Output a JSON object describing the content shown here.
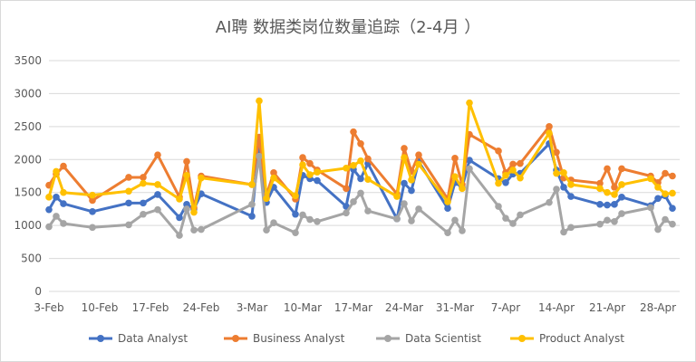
{
  "chart_data": {
    "type": "line",
    "title": "AI聘 数据类岗位数量追踪（2-4月 ）",
    "xlabel": "",
    "ylabel": "",
    "ylim": [
      0,
      3500
    ],
    "yticks": [
      0,
      500,
      1000,
      1500,
      2000,
      2500,
      3000,
      3500
    ],
    "x_start": "2019-02-03",
    "x_end": "2019-05-01",
    "xticks": [
      {
        "date": "2019-02-03",
        "label": "3-Feb"
      },
      {
        "date": "2019-02-10",
        "label": "10-Feb"
      },
      {
        "date": "2019-02-17",
        "label": "17-Feb"
      },
      {
        "date": "2019-02-24",
        "label": "24-Feb"
      },
      {
        "date": "2019-03-03",
        "label": "3-Mar"
      },
      {
        "date": "2019-03-10",
        "label": "10-Mar"
      },
      {
        "date": "2019-03-17",
        "label": "17-Mar"
      },
      {
        "date": "2019-03-24",
        "label": "24-Mar"
      },
      {
        "date": "2019-03-31",
        "label": "31-Mar"
      },
      {
        "date": "2019-04-07",
        "label": "7-Apr"
      },
      {
        "date": "2019-04-14",
        "label": "14-Apr"
      },
      {
        "date": "2019-04-21",
        "label": "21-Apr"
      },
      {
        "date": "2019-04-28",
        "label": "28-Apr"
      }
    ],
    "grid": "horizontal",
    "legend_position": "bottom",
    "series": [
      {
        "name": "Data Analyst",
        "color": "#4472C4",
        "points": [
          [
            "2019-02-03",
            1240
          ],
          [
            "2019-02-04",
            1430
          ],
          [
            "2019-02-05",
            1330
          ],
          [
            "2019-02-09",
            1210
          ],
          [
            "2019-02-14",
            1340
          ],
          [
            "2019-02-16",
            1340
          ],
          [
            "2019-02-18",
            1470
          ],
          [
            "2019-02-21",
            1120
          ],
          [
            "2019-02-22",
            1320
          ],
          [
            "2019-02-23",
            1250
          ],
          [
            "2019-02-24",
            1480
          ],
          [
            "2019-03-03",
            1140
          ],
          [
            "2019-03-04",
            2260
          ],
          [
            "2019-03-05",
            1350
          ],
          [
            "2019-03-06",
            1580
          ],
          [
            "2019-03-09",
            1170
          ],
          [
            "2019-03-10",
            1760
          ],
          [
            "2019-03-11",
            1710
          ],
          [
            "2019-03-12",
            1680
          ],
          [
            "2019-03-16",
            1290
          ],
          [
            "2019-03-17",
            1850
          ],
          [
            "2019-03-18",
            1710
          ],
          [
            "2019-03-19",
            1940
          ],
          [
            "2019-03-23",
            1100
          ],
          [
            "2019-03-24",
            1640
          ],
          [
            "2019-03-25",
            1530
          ],
          [
            "2019-03-26",
            1970
          ],
          [
            "2019-03-30",
            1260
          ],
          [
            "2019-03-31",
            1650
          ],
          [
            "2019-04-01",
            1580
          ],
          [
            "2019-04-02",
            1990
          ],
          [
            "2019-04-06",
            1710
          ],
          [
            "2019-04-07",
            1650
          ],
          [
            "2019-04-08",
            1780
          ],
          [
            "2019-04-09",
            1790
          ],
          [
            "2019-04-13",
            2240
          ],
          [
            "2019-04-14",
            1840
          ],
          [
            "2019-04-15",
            1580
          ],
          [
            "2019-04-16",
            1440
          ],
          [
            "2019-04-20",
            1320
          ],
          [
            "2019-04-21",
            1310
          ],
          [
            "2019-04-22",
            1320
          ],
          [
            "2019-04-23",
            1430
          ],
          [
            "2019-04-27",
            1300
          ],
          [
            "2019-04-28",
            1410
          ],
          [
            "2019-04-29",
            1450
          ],
          [
            "2019-04-30",
            1260
          ]
        ]
      },
      {
        "name": "Business Analyst",
        "color": "#ED7D31",
        "points": [
          [
            "2019-02-03",
            1610
          ],
          [
            "2019-02-04",
            1780
          ],
          [
            "2019-02-05",
            1900
          ],
          [
            "2019-02-09",
            1380
          ],
          [
            "2019-02-14",
            1730
          ],
          [
            "2019-02-16",
            1730
          ],
          [
            "2019-02-18",
            2070
          ],
          [
            "2019-02-21",
            1430
          ],
          [
            "2019-02-22",
            1970
          ],
          [
            "2019-02-23",
            1270
          ],
          [
            "2019-02-24",
            1750
          ],
          [
            "2019-03-03",
            1620
          ],
          [
            "2019-03-04",
            2340
          ],
          [
            "2019-03-05",
            1460
          ],
          [
            "2019-03-06",
            1800
          ],
          [
            "2019-03-09",
            1400
          ],
          [
            "2019-03-10",
            2030
          ],
          [
            "2019-03-11",
            1940
          ],
          [
            "2019-03-12",
            1840
          ],
          [
            "2019-03-16",
            1560
          ],
          [
            "2019-03-17",
            2420
          ],
          [
            "2019-03-18",
            2240
          ],
          [
            "2019-03-19",
            2010
          ],
          [
            "2019-03-23",
            1480
          ],
          [
            "2019-03-24",
            2170
          ],
          [
            "2019-03-25",
            1820
          ],
          [
            "2019-03-26",
            2070
          ],
          [
            "2019-03-30",
            1400
          ],
          [
            "2019-03-31",
            2020
          ],
          [
            "2019-04-01",
            1620
          ],
          [
            "2019-04-02",
            2380
          ],
          [
            "2019-04-06",
            2130
          ],
          [
            "2019-04-07",
            1800
          ],
          [
            "2019-04-08",
            1930
          ],
          [
            "2019-04-09",
            1940
          ],
          [
            "2019-04-13",
            2500
          ],
          [
            "2019-04-14",
            2110
          ],
          [
            "2019-04-15",
            1720
          ],
          [
            "2019-04-16",
            1690
          ],
          [
            "2019-04-20",
            1640
          ],
          [
            "2019-04-21",
            1860
          ],
          [
            "2019-04-22",
            1580
          ],
          [
            "2019-04-23",
            1860
          ],
          [
            "2019-04-27",
            1750
          ],
          [
            "2019-04-28",
            1650
          ],
          [
            "2019-04-29",
            1790
          ],
          [
            "2019-04-30",
            1750
          ]
        ]
      },
      {
        "name": "Data Scientist",
        "color": "#A5A5A5",
        "points": [
          [
            "2019-02-03",
            980
          ],
          [
            "2019-02-04",
            1140
          ],
          [
            "2019-02-05",
            1030
          ],
          [
            "2019-02-09",
            970
          ],
          [
            "2019-02-14",
            1010
          ],
          [
            "2019-02-16",
            1170
          ],
          [
            "2019-02-18",
            1240
          ],
          [
            "2019-02-21",
            850
          ],
          [
            "2019-02-22",
            1250
          ],
          [
            "2019-02-23",
            930
          ],
          [
            "2019-02-24",
            940
          ],
          [
            "2019-03-03",
            1320
          ],
          [
            "2019-03-04",
            2050
          ],
          [
            "2019-03-05",
            930
          ],
          [
            "2019-03-06",
            1040
          ],
          [
            "2019-03-09",
            890
          ],
          [
            "2019-03-10",
            1160
          ],
          [
            "2019-03-11",
            1090
          ],
          [
            "2019-03-12",
            1060
          ],
          [
            "2019-03-16",
            1190
          ],
          [
            "2019-03-17",
            1360
          ],
          [
            "2019-03-18",
            1490
          ],
          [
            "2019-03-19",
            1220
          ],
          [
            "2019-03-23",
            1100
          ],
          [
            "2019-03-24",
            1330
          ],
          [
            "2019-03-25",
            1070
          ],
          [
            "2019-03-26",
            1250
          ],
          [
            "2019-03-30",
            890
          ],
          [
            "2019-03-31",
            1080
          ],
          [
            "2019-04-01",
            920
          ],
          [
            "2019-04-02",
            1860
          ],
          [
            "2019-04-06",
            1290
          ],
          [
            "2019-04-07",
            1110
          ],
          [
            "2019-04-08",
            1030
          ],
          [
            "2019-04-09",
            1160
          ],
          [
            "2019-04-13",
            1350
          ],
          [
            "2019-04-14",
            1550
          ],
          [
            "2019-04-15",
            900
          ],
          [
            "2019-04-16",
            970
          ],
          [
            "2019-04-20",
            1020
          ],
          [
            "2019-04-21",
            1080
          ],
          [
            "2019-04-22",
            1060
          ],
          [
            "2019-04-23",
            1180
          ],
          [
            "2019-04-27",
            1270
          ],
          [
            "2019-04-28",
            940
          ],
          [
            "2019-04-29",
            1090
          ],
          [
            "2019-04-30",
            1020
          ]
        ]
      },
      {
        "name": "Product Analyst",
        "color": "#FFC000",
        "points": [
          [
            "2019-02-03",
            1430
          ],
          [
            "2019-02-04",
            1820
          ],
          [
            "2019-02-05",
            1500
          ],
          [
            "2019-02-09",
            1460
          ],
          [
            "2019-02-14",
            1520
          ],
          [
            "2019-02-16",
            1640
          ],
          [
            "2019-02-18",
            1620
          ],
          [
            "2019-02-21",
            1400
          ],
          [
            "2019-02-22",
            1760
          ],
          [
            "2019-02-23",
            1200
          ],
          [
            "2019-02-24",
            1720
          ],
          [
            "2019-03-03",
            1620
          ],
          [
            "2019-03-04",
            2890
          ],
          [
            "2019-03-05",
            1410
          ],
          [
            "2019-03-06",
            1720
          ],
          [
            "2019-03-09",
            1450
          ],
          [
            "2019-03-10",
            1920
          ],
          [
            "2019-03-11",
            1770
          ],
          [
            "2019-03-12",
            1810
          ],
          [
            "2019-03-16",
            1870
          ],
          [
            "2019-03-17",
            1910
          ],
          [
            "2019-03-18",
            1980
          ],
          [
            "2019-03-19",
            1700
          ],
          [
            "2019-03-23",
            1440
          ],
          [
            "2019-03-24",
            2030
          ],
          [
            "2019-03-25",
            1690
          ],
          [
            "2019-03-26",
            1930
          ],
          [
            "2019-03-30",
            1360
          ],
          [
            "2019-03-31",
            1740
          ],
          [
            "2019-04-01",
            1560
          ],
          [
            "2019-04-02",
            2860
          ],
          [
            "2019-04-06",
            1640
          ],
          [
            "2019-04-07",
            1760
          ],
          [
            "2019-04-08",
            1840
          ],
          [
            "2019-04-09",
            1720
          ],
          [
            "2019-04-13",
            2400
          ],
          [
            "2019-04-14",
            1790
          ],
          [
            "2019-04-15",
            1800
          ],
          [
            "2019-04-16",
            1620
          ],
          [
            "2019-04-20",
            1560
          ],
          [
            "2019-04-21",
            1500
          ],
          [
            "2019-04-22",
            1470
          ],
          [
            "2019-04-23",
            1620
          ],
          [
            "2019-04-27",
            1710
          ],
          [
            "2019-04-28",
            1580
          ],
          [
            "2019-04-29",
            1480
          ],
          [
            "2019-04-30",
            1490
          ]
        ]
      }
    ]
  }
}
